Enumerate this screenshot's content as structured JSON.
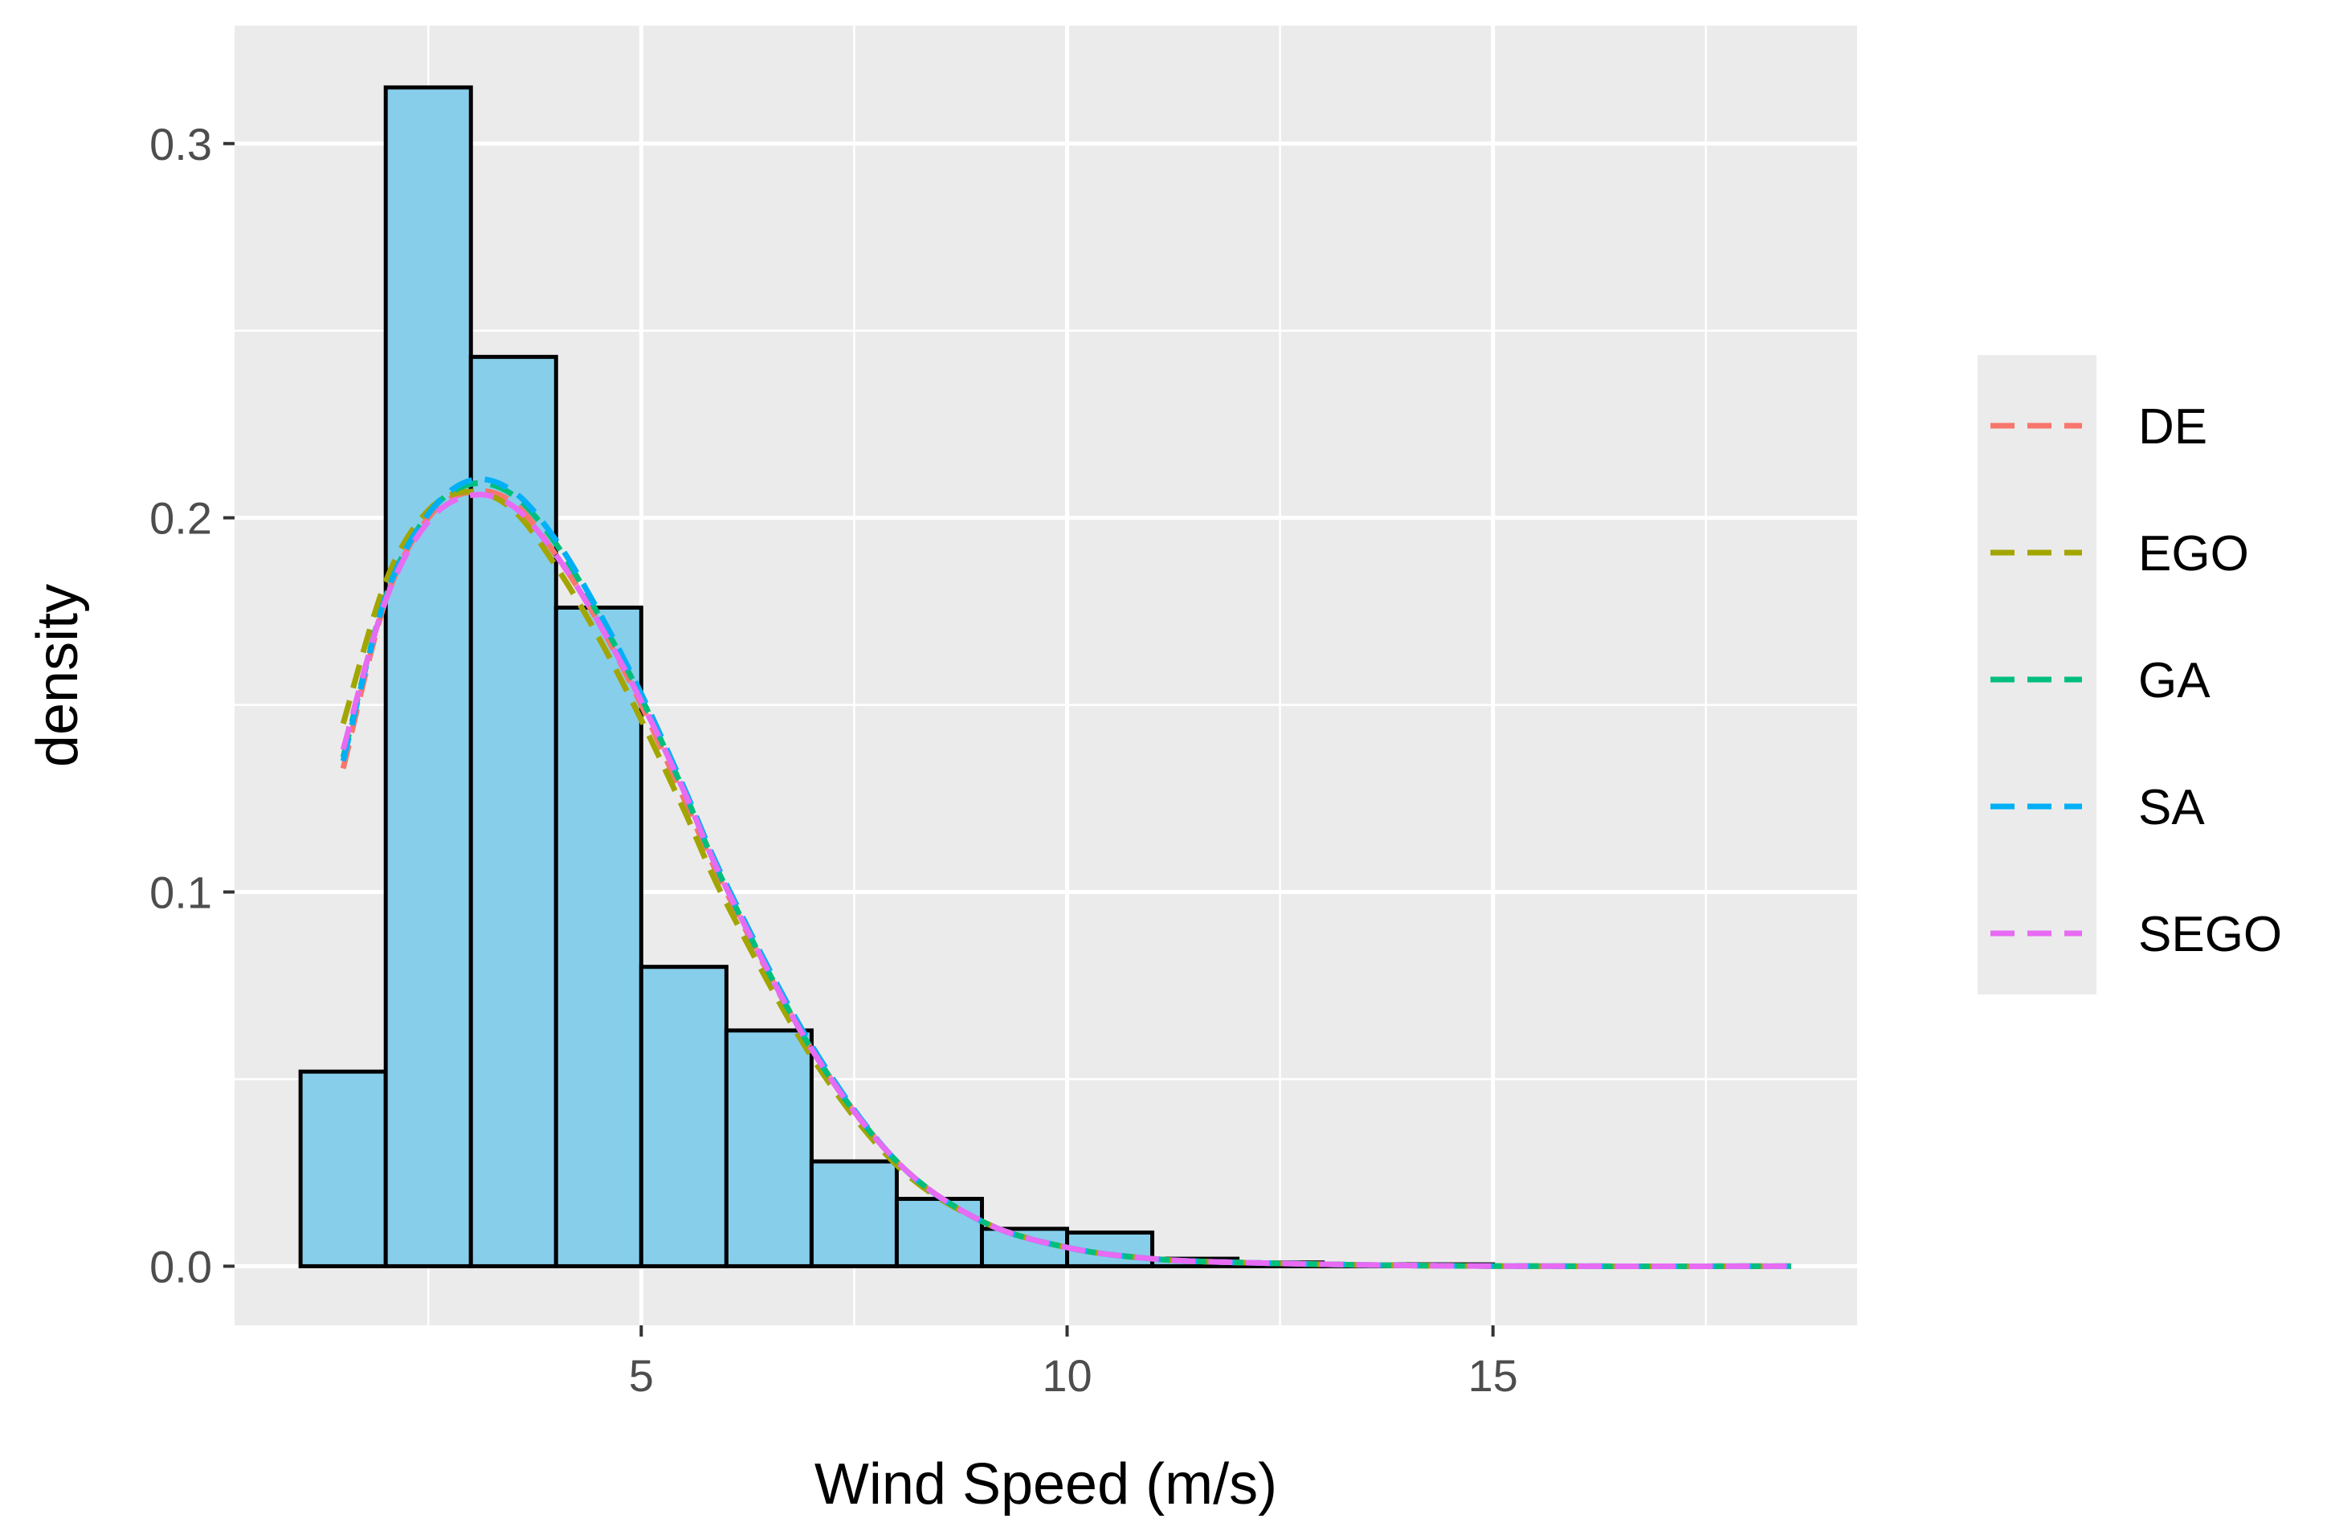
{
  "chart_data": {
    "type": "histogram",
    "title": "",
    "xlabel": "Wind Speed (m/s)",
    "ylabel": "density",
    "xlim": [
      0.225,
      19.275
    ],
    "ylim": [
      -0.0158,
      0.3315
    ],
    "x_ticks": [
      5,
      10,
      15
    ],
    "x_tick_labels": [
      "5",
      "10",
      "15"
    ],
    "y_ticks": [
      0.0,
      0.1,
      0.2,
      0.3
    ],
    "y_tick_labels": [
      "0.0",
      "0.1",
      "0.2",
      "0.3"
    ],
    "grid": true,
    "bins": [
      {
        "x0": 1,
        "x1": 2,
        "density": 0.052
      },
      {
        "x0": 2,
        "x1": 3,
        "density": 0.315
      },
      {
        "x0": 3,
        "x1": 4,
        "density": 0.243
      },
      {
        "x0": 4,
        "x1": 5,
        "density": 0.176
      },
      {
        "x0": 5,
        "x1": 6,
        "density": 0.08
      },
      {
        "x0": 6,
        "x1": 7,
        "density": 0.063
      },
      {
        "x0": 7,
        "x1": 8,
        "density": 0.028
      },
      {
        "x0": 8,
        "x1": 9,
        "density": 0.018
      },
      {
        "x0": 9,
        "x1": 10,
        "density": 0.01
      },
      {
        "x0": 10,
        "x1": 11,
        "density": 0.009
      },
      {
        "x0": 11,
        "x1": 12,
        "density": 0.002
      },
      {
        "x0": 12,
        "x1": 13,
        "density": 0.001
      },
      {
        "x0": 13,
        "x1": 14,
        "density": 0.0005
      },
      {
        "x0": 14,
        "x1": 15,
        "density": 0.0005
      }
    ],
    "bar_fill": "#87ceeb",
    "bar_stroke": "#000000",
    "series": [
      {
        "name": "DE",
        "color": "#F8766D",
        "x": [
          1.5,
          2.0,
          2.5,
          3.0,
          3.5,
          4.0,
          4.5,
          5.0,
          5.5,
          6.0,
          7.0,
          8.0,
          9.0,
          10.0,
          11.0,
          12.0,
          14.0,
          16.0,
          18.5
        ],
        "y": [
          0.133,
          0.178,
          0.2,
          0.207,
          0.204,
          0.19,
          0.172,
          0.15,
          0.125,
          0.1,
          0.058,
          0.028,
          0.012,
          0.005,
          0.002,
          0.001,
          0.0002,
          0.0,
          0.0
        ]
      },
      {
        "name": "EGO",
        "color": "#A3A500",
        "x": [
          1.5,
          2.0,
          2.5,
          3.0,
          3.5,
          4.0,
          4.5,
          5.0,
          5.5,
          6.0,
          7.0,
          8.0,
          9.0,
          10.0,
          11.0,
          12.0,
          14.0,
          16.0,
          18.5
        ],
        "y": [
          0.145,
          0.183,
          0.202,
          0.207,
          0.202,
          0.187,
          0.168,
          0.146,
          0.122,
          0.097,
          0.056,
          0.027,
          0.012,
          0.005,
          0.002,
          0.001,
          0.0002,
          0.0,
          0.0
        ]
      },
      {
        "name": "GA",
        "color": "#00BF7D",
        "x": [
          1.5,
          2.0,
          2.5,
          3.0,
          3.5,
          4.0,
          4.5,
          5.0,
          5.5,
          6.0,
          7.0,
          8.0,
          9.0,
          10.0,
          11.0,
          12.0,
          14.0,
          16.0,
          18.5
        ],
        "y": [
          0.136,
          0.179,
          0.201,
          0.209,
          0.206,
          0.193,
          0.174,
          0.152,
          0.127,
          0.101,
          0.058,
          0.028,
          0.012,
          0.005,
          0.002,
          0.001,
          0.0002,
          0.0,
          0.0
        ]
      },
      {
        "name": "SA",
        "color": "#00B0F6",
        "x": [
          1.5,
          2.0,
          2.5,
          3.0,
          3.5,
          4.0,
          4.5,
          5.0,
          5.5,
          6.0,
          7.0,
          8.0,
          9.0,
          10.0,
          11.0,
          12.0,
          14.0,
          16.0,
          18.5
        ],
        "y": [
          0.135,
          0.179,
          0.201,
          0.21,
          0.207,
          0.194,
          0.175,
          0.153,
          0.128,
          0.102,
          0.059,
          0.028,
          0.012,
          0.005,
          0.002,
          0.001,
          0.0002,
          0.0,
          0.0
        ]
      },
      {
        "name": "SEGO",
        "color": "#E76BF3",
        "x": [
          1.5,
          2.0,
          2.5,
          3.0,
          3.5,
          4.0,
          4.5,
          5.0,
          5.5,
          6.0,
          7.0,
          8.0,
          9.0,
          10.0,
          11.0,
          12.0,
          14.0,
          16.0,
          18.5
        ],
        "y": [
          0.138,
          0.178,
          0.199,
          0.206,
          0.203,
          0.19,
          0.172,
          0.151,
          0.127,
          0.101,
          0.058,
          0.028,
          0.012,
          0.005,
          0.002,
          0.001,
          0.0002,
          0.0,
          0.0
        ]
      }
    ],
    "legend": {
      "position": "right",
      "entries": [
        "DE",
        "EGO",
        "GA",
        "SA",
        "SEGO"
      ]
    },
    "panel_background": "#EBEBEB",
    "grid_color": "#FFFFFF"
  }
}
